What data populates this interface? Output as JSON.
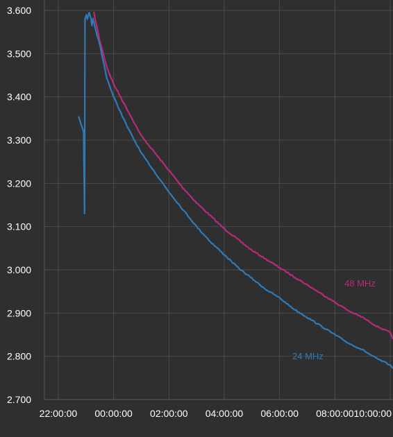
{
  "chart_data": {
    "type": "line",
    "title": "",
    "xlabel": "",
    "ylabel": "",
    "grid": true,
    "legend": "inline labels at line ends",
    "background_color": "#2f2f2f",
    "grid_color": "#4b4b4b",
    "text_color": "#ffffff",
    "x_axis": {
      "min": "21:30:00",
      "max": "10:06:00 (next day)",
      "tick_labels": [
        "22:00:00",
        "00:00:00",
        "02:00:00",
        "04:00:00",
        "06:00:00",
        "08:00:00",
        "10:00:00"
      ]
    },
    "y_axis": {
      "min": 2.7,
      "max": 3.6,
      "tick_labels": [
        "3.600",
        "3.500",
        "3.400",
        "3.300",
        "3.200",
        "3.100",
        "3.000",
        "2.900",
        "2.800",
        "2.700"
      ]
    },
    "series": [
      {
        "name": "48 MHz",
        "color": "#b82a7a",
        "points": [
          [
            "23:17:00",
            3.595
          ],
          [
            "23:30:00",
            3.53
          ],
          [
            "23:45:00",
            3.47
          ],
          [
            "00:00:00",
            3.43
          ],
          [
            "00:15:00",
            3.4
          ],
          [
            "00:30:00",
            3.37
          ],
          [
            "00:45:00",
            3.34
          ],
          [
            "01:00:00",
            3.31
          ],
          [
            "01:30:00",
            3.27
          ],
          [
            "02:00:00",
            3.23
          ],
          [
            "02:30:00",
            3.19
          ],
          [
            "03:00:00",
            3.155
          ],
          [
            "03:30:00",
            3.125
          ],
          [
            "04:00:00",
            3.095
          ],
          [
            "04:30:00",
            3.07
          ],
          [
            "05:00:00",
            3.045
          ],
          [
            "05:30:00",
            3.025
          ],
          [
            "06:00:00",
            3.005
          ],
          [
            "06:30:00",
            2.985
          ],
          [
            "07:00:00",
            2.965
          ],
          [
            "07:30:00",
            2.945
          ],
          [
            "08:00:00",
            2.925
          ],
          [
            "08:30:00",
            2.905
          ],
          [
            "09:00:00",
            2.89
          ],
          [
            "09:30:00",
            2.87
          ],
          [
            "10:00:00",
            2.855
          ],
          [
            "10:06:00",
            2.84
          ]
        ]
      },
      {
        "name": "24 MHz",
        "color": "#2f7bb8",
        "points": [
          [
            "22:44:00",
            3.355
          ],
          [
            "22:50:00",
            3.335
          ],
          [
            "22:55:00",
            3.32
          ],
          [
            "22:57:00",
            3.13
          ],
          [
            "22:58:00",
            3.58
          ],
          [
            "23:01:00",
            3.59
          ],
          [
            "23:03:00",
            3.58
          ],
          [
            "23:07:00",
            3.595
          ],
          [
            "23:11:00",
            3.58
          ],
          [
            "23:13:00",
            3.565
          ],
          [
            "23:15:00",
            3.58
          ],
          [
            "23:30:00",
            3.52
          ],
          [
            "23:45:00",
            3.445
          ],
          [
            "00:00:00",
            3.4
          ],
          [
            "00:15:00",
            3.365
          ],
          [
            "00:30:00",
            3.33
          ],
          [
            "00:45:00",
            3.3
          ],
          [
            "01:00:00",
            3.27
          ],
          [
            "01:30:00",
            3.225
          ],
          [
            "02:00:00",
            3.18
          ],
          [
            "02:30:00",
            3.14
          ],
          [
            "03:00:00",
            3.1
          ],
          [
            "03:30:00",
            3.065
          ],
          [
            "04:00:00",
            3.035
          ],
          [
            "04:30:00",
            3.005
          ],
          [
            "05:00:00",
            2.98
          ],
          [
            "05:30:00",
            2.955
          ],
          [
            "06:00:00",
            2.935
          ],
          [
            "06:30:00",
            2.91
          ],
          [
            "07:00:00",
            2.89
          ],
          [
            "07:30:00",
            2.87
          ],
          [
            "08:00:00",
            2.85
          ],
          [
            "08:30:00",
            2.83
          ],
          [
            "09:00:00",
            2.815
          ],
          [
            "09:30:00",
            2.795
          ],
          [
            "10:00:00",
            2.78
          ],
          [
            "10:06:00",
            2.772
          ]
        ]
      }
    ]
  }
}
